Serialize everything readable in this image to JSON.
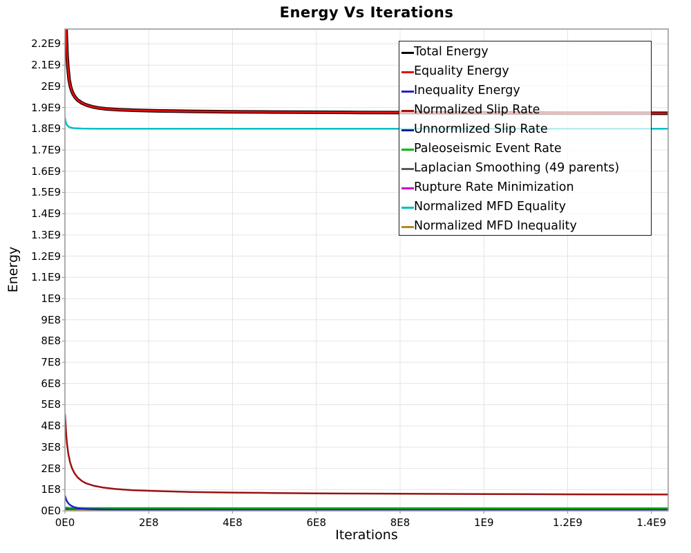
{
  "title": "Energy Vs Iterations",
  "chart_data": {
    "type": "line",
    "title": "Energy Vs Iterations",
    "xlabel": "Iterations",
    "ylabel": "Energy",
    "xlim": [
      0,
      1440000000
    ],
    "ylim": [
      0,
      2270000000
    ],
    "grid": true,
    "legend_position": "inside-top-right",
    "grid_color": "#e4e4e4",
    "border_color": "#9b9b9b",
    "x_ticks": [
      {
        "value": 0,
        "label": "0E0"
      },
      {
        "value": 200000000,
        "label": "2E8"
      },
      {
        "value": 400000000,
        "label": "4E8"
      },
      {
        "value": 600000000,
        "label": "6E8"
      },
      {
        "value": 800000000,
        "label": "8E8"
      },
      {
        "value": 1000000000,
        "label": "1E9"
      },
      {
        "value": 1200000000,
        "label": "1.2E9"
      },
      {
        "value": 1400000000,
        "label": "1.4E9"
      }
    ],
    "y_ticks": [
      {
        "value": 0,
        "label": "0E0"
      },
      {
        "value": 100000000,
        "label": "1E8"
      },
      {
        "value": 200000000,
        "label": "2E8"
      },
      {
        "value": 300000000,
        "label": "3E8"
      },
      {
        "value": 400000000,
        "label": "4E8"
      },
      {
        "value": 500000000,
        "label": "5E8"
      },
      {
        "value": 600000000,
        "label": "6E8"
      },
      {
        "value": 700000000,
        "label": "7E8"
      },
      {
        "value": 800000000,
        "label": "8E8"
      },
      {
        "value": 900000000,
        "label": "9E8"
      },
      {
        "value": 1000000000,
        "label": "1E9"
      },
      {
        "value": 1100000000,
        "label": "1.1E9"
      },
      {
        "value": 1200000000,
        "label": "1.2E9"
      },
      {
        "value": 1300000000,
        "label": "1.3E9"
      },
      {
        "value": 1400000000,
        "label": "1.4E9"
      },
      {
        "value": 1500000000,
        "label": "1.5E9"
      },
      {
        "value": 1600000000,
        "label": "1.6E9"
      },
      {
        "value": 1700000000,
        "label": "1.7E9"
      },
      {
        "value": 1800000000,
        "label": "1.8E9"
      },
      {
        "value": 1900000000,
        "label": "1.9E9"
      },
      {
        "value": 2000000000,
        "label": "2E9"
      },
      {
        "value": 2100000000,
        "label": "2.1E9"
      },
      {
        "value": 2200000000,
        "label": "2.2E9"
      }
    ],
    "series": [
      {
        "name": "Total Energy",
        "color": "#000000",
        "width": 5,
        "z": 9,
        "points": [
          [
            0,
            2600000000.0
          ],
          [
            1000000.0,
            2450000000.0
          ],
          [
            3000000.0,
            2250000000.0
          ],
          [
            5000000.0,
            2150000000.0
          ],
          [
            7000000.0,
            2090000000.0
          ],
          [
            10000000.0,
            2030000000.0
          ],
          [
            13000000.0,
            2000000000.0
          ],
          [
            16000000.0,
            1980000000.0
          ],
          [
            20000000.0,
            1962000000.0
          ],
          [
            25000000.0,
            1947000000.0
          ],
          [
            30000000.0,
            1936000000.0
          ],
          [
            40000000.0,
            1922000000.0
          ],
          [
            50000000.0,
            1913000000.0
          ],
          [
            65000000.0,
            1904000000.0
          ],
          [
            80000000.0,
            1898000000.0
          ],
          [
            100000000.0,
            1893500000.0
          ],
          [
            130000000.0,
            1889500000.0
          ],
          [
            170000000.0,
            1887000000.0
          ],
          [
            220000000.0,
            1884500000.0
          ],
          [
            300000000.0,
            1882000000.0
          ],
          [
            400000000.0,
            1880000000.0
          ],
          [
            500000000.0,
            1879000000.0
          ],
          [
            600000000.0,
            1878000000.0
          ],
          [
            700000000.0,
            1877000000.0
          ],
          [
            800000000.0,
            1876300000.0
          ],
          [
            900000000.0,
            1875600000.0
          ],
          [
            1000000000.0,
            1875000000.0
          ],
          [
            1100000000.0,
            1874400000.0
          ],
          [
            1200000000.0,
            1873800000.0
          ],
          [
            1300000000.0,
            1873400000.0
          ],
          [
            1440000000.0,
            1873000000.0
          ]
        ]
      },
      {
        "name": "Equality Energy",
        "color": "#e60c0c",
        "width": 2.8,
        "z": 10,
        "points": [
          [
            0,
            2600000000.0
          ],
          [
            1000000.0,
            2450000000.0
          ],
          [
            3000000.0,
            2250000000.0
          ],
          [
            5000000.0,
            2150000000.0
          ],
          [
            7000000.0,
            2090000000.0
          ],
          [
            10000000.0,
            2030000000.0
          ],
          [
            13000000.0,
            2000000000.0
          ],
          [
            16000000.0,
            1980000000.0
          ],
          [
            20000000.0,
            1962000000.0
          ],
          [
            25000000.0,
            1947000000.0
          ],
          [
            30000000.0,
            1936000000.0
          ],
          [
            40000000.0,
            1922000000.0
          ],
          [
            50000000.0,
            1913000000.0
          ],
          [
            65000000.0,
            1904000000.0
          ],
          [
            80000000.0,
            1898000000.0
          ],
          [
            100000000.0,
            1893500000.0
          ],
          [
            130000000.0,
            1889500000.0
          ],
          [
            170000000.0,
            1887000000.0
          ],
          [
            220000000.0,
            1884500000.0
          ],
          [
            300000000.0,
            1882000000.0
          ],
          [
            400000000.0,
            1880000000.0
          ],
          [
            500000000.0,
            1879000000.0
          ],
          [
            600000000.0,
            1878000000.0
          ],
          [
            700000000.0,
            1877000000.0
          ],
          [
            800000000.0,
            1876300000.0
          ],
          [
            900000000.0,
            1875600000.0
          ],
          [
            1000000000.0,
            1875000000.0
          ],
          [
            1100000000.0,
            1874400000.0
          ],
          [
            1200000000.0,
            1873800000.0
          ],
          [
            1300000000.0,
            1873400000.0
          ],
          [
            1440000000.0,
            1873000000.0
          ]
        ]
      },
      {
        "name": "Inequality Energy",
        "color": "#2020cc",
        "width": 2.5,
        "z": 6,
        "points": [
          [
            0,
            72000000.0
          ],
          [
            2000000.0,
            58000000.0
          ],
          [
            5000000.0,
            44000000.0
          ],
          [
            10000000.0,
            31000000.0
          ],
          [
            15000000.0,
            24000000.0
          ],
          [
            20000000.0,
            19000000.0
          ],
          [
            30000000.0,
            13500000.0
          ],
          [
            40000000.0,
            10500000.0
          ],
          [
            60000000.0,
            8000000.0
          ],
          [
            90000000.0,
            6500000.0
          ],
          [
            150000000.0,
            5200000.0
          ],
          [
            300000000.0,
            4500000.0
          ],
          [
            600000000.0,
            4000000.0
          ],
          [
            1440000000.0,
            3800000.0
          ]
        ]
      },
      {
        "name": "Normalized Slip Rate",
        "color": "#991111",
        "width": 2.5,
        "z": 7,
        "points": [
          [
            0,
            455000000.0
          ],
          [
            1500000.0,
            410000000.0
          ],
          [
            3000000.0,
            360000000.0
          ],
          [
            5000000.0,
            315000000.0
          ],
          [
            8000000.0,
            270000000.0
          ],
          [
            12000000.0,
            230000000.0
          ],
          [
            17000000.0,
            200000000.0
          ],
          [
            23000000.0,
            177000000.0
          ],
          [
            30000000.0,
            158000000.0
          ],
          [
            40000000.0,
            141000000.0
          ],
          [
            50000000.0,
            130000000.0
          ],
          [
            70000000.0,
            117500000.0
          ],
          [
            90000000.0,
            110000000.0
          ],
          [
            120000000.0,
            103000000.0
          ],
          [
            160000000.0,
            97500000.0
          ],
          [
            220000000.0,
            93000000.0
          ],
          [
            300000000.0,
            89000000.0
          ],
          [
            400000000.0,
            86000000.0
          ],
          [
            500000000.0,
            84000000.0
          ],
          [
            600000000.0,
            82500000.0
          ],
          [
            700000000.0,
            81500000.0
          ],
          [
            800000000.0,
            80500000.0
          ],
          [
            1000000000.0,
            79000000.0
          ],
          [
            1200000000.0,
            78000000.0
          ],
          [
            1440000000.0,
            77000000.0
          ]
        ]
      },
      {
        "name": "Unnormlized Slip Rate",
        "color": "#1a1a8c",
        "width": 2,
        "z": 3,
        "points": [
          [
            0,
            9000000.0
          ],
          [
            10000000.0,
            7000000.0
          ],
          [
            1440000000.0,
            6000000.0
          ]
        ]
      },
      {
        "name": "Paleoseismic Event Rate",
        "color": "#00b400",
        "width": 2.5,
        "z": 5,
        "points": [
          [
            0,
            16000000.0
          ],
          [
            10000000.0,
            14000000.0
          ],
          [
            50000000.0,
            13000000.0
          ],
          [
            1440000000.0,
            12000000.0
          ]
        ]
      },
      {
        "name": "Laplacian Smoothing (49 parents)",
        "color": "#5a5a5a",
        "width": 2,
        "z": 2,
        "points": [
          [
            0,
            7000000.0
          ],
          [
            1440000000.0,
            5500000.0
          ]
        ]
      },
      {
        "name": "Rupture Rate Minimization",
        "color": "#cc00cc",
        "width": 2,
        "z": 1,
        "points": [
          [
            0,
            5000000.0
          ],
          [
            1440000000.0,
            4500000.0
          ]
        ]
      },
      {
        "name": "Normalized MFD Equality",
        "color": "#00bfc6",
        "width": 2.5,
        "z": 8,
        "points": [
          [
            0,
            1853000000.0
          ],
          [
            2000000.0,
            1830000000.0
          ],
          [
            5000000.0,
            1817000000.0
          ],
          [
            10000000.0,
            1808000000.0
          ],
          [
            20000000.0,
            1803000000.0
          ],
          [
            40000000.0,
            1801000000.0
          ],
          [
            80000000.0,
            1800500000.0
          ],
          [
            1440000000.0,
            1800000000.0
          ]
        ]
      },
      {
        "name": "Normalized MFD Inequality",
        "color": "#b5891f",
        "width": 2.2,
        "z": 4,
        "points": [
          [
            0,
            2500000.0
          ],
          [
            1440000000.0,
            2000000.0
          ]
        ]
      }
    ]
  }
}
